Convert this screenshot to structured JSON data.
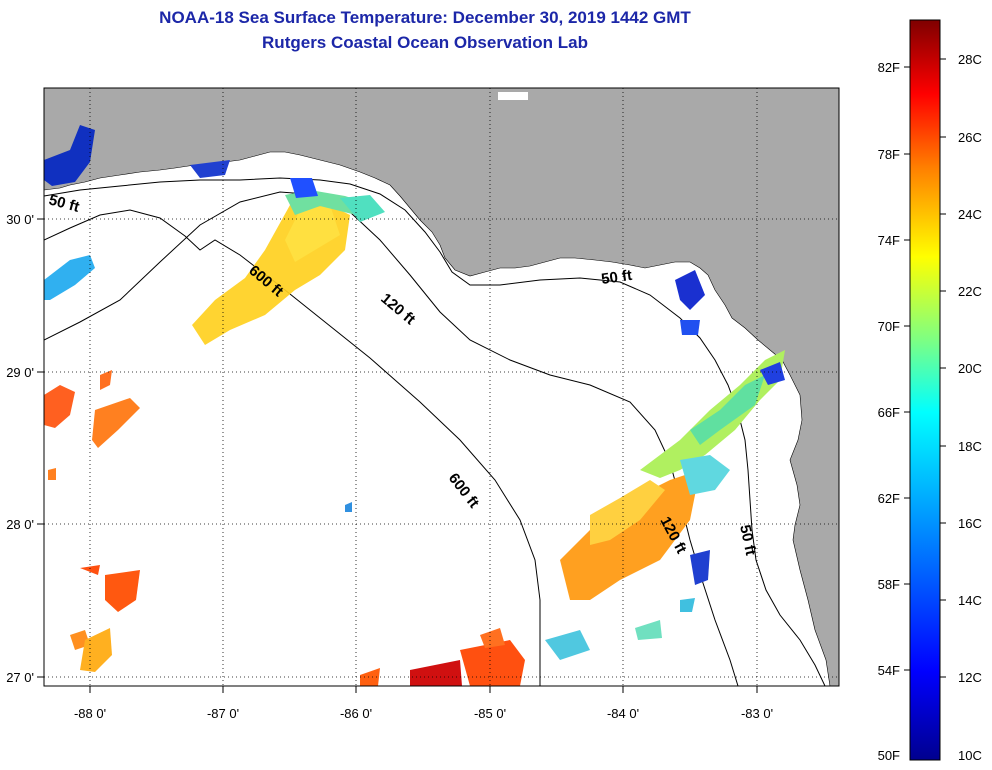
{
  "title": {
    "line1": "NOAA-18 Sea Surface Temperature:  December 30, 2019 1442 GMT",
    "line2": "Rutgers Coastal Ocean Observation Lab"
  },
  "map": {
    "lon_ticks": [
      "-88 0'",
      "-87 0'",
      "-86 0'",
      "-85 0'",
      "-84 0'",
      "-83 0'"
    ],
    "lat_ticks": [
      "30 0'",
      "29 0'",
      "28 0'",
      "27 0'"
    ],
    "isobaths": [
      "50 ft",
      "120 ft",
      "600 ft"
    ],
    "isobath_labels": [
      "50 ft",
      "600 ft",
      "120 ft",
      "50 ft",
      "600 ft",
      "120 ft",
      "50 ft"
    ],
    "land_color": "#a9a9a9",
    "water_color": "#ffffff"
  },
  "colorbar": {
    "fahrenheit_labels": [
      "82F",
      "78F",
      "74F",
      "70F",
      "66F",
      "62F",
      "58F",
      "54F",
      "50F"
    ],
    "celsius_labels": [
      "28C",
      "26C",
      "24C",
      "22C",
      "20C",
      "18C",
      "16C",
      "14C",
      "12C",
      "10C"
    ],
    "colors": [
      "#7f0000",
      "#ff0000",
      "#ff8000",
      "#ffff00",
      "#80ff80",
      "#00ffff",
      "#0080ff",
      "#0000ff",
      "#00008f"
    ]
  }
}
